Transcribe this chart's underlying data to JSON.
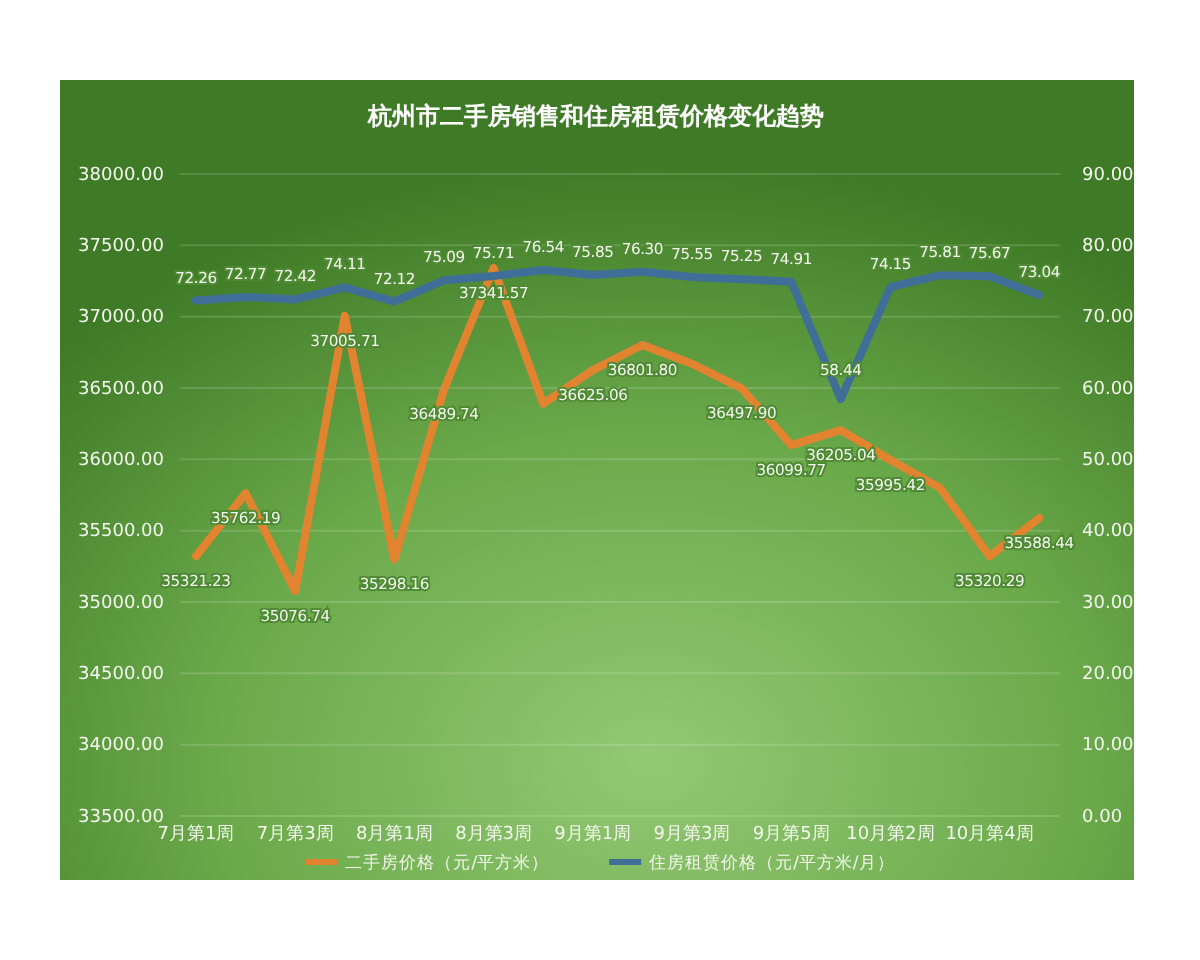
{
  "chart_data": {
    "type": "line",
    "title": "杭州市二手房销售和住房租赁价格变化趋势",
    "categories": [
      "7月第1周",
      null,
      "7月第3周",
      null,
      "8月第1周",
      null,
      "8月第3周",
      null,
      "9月第1周",
      null,
      "9月第3周",
      null,
      "9月第5周",
      null,
      "10月第2周",
      null,
      "10月第4周",
      null
    ],
    "series": [
      {
        "name": "二手房价格（元/平方米）",
        "color": "#e2842f",
        "values": [
          35321.23,
          35762.19,
          35076.74,
          37005.71,
          35298.16,
          36489.74,
          37341.57,
          36390,
          36625.06,
          36801.8,
          36670,
          36497.9,
          36099.77,
          36205.04,
          35995.42,
          35800,
          35320.29,
          35588.44
        ],
        "value_labels": [
          "35321.23",
          "35762.19",
          "35076.74",
          "37005.71",
          "35298.16",
          "36489.74",
          "37341.57",
          null,
          "36625.06",
          "36801.80",
          null,
          "36497.90",
          "36099.77",
          "36205.04",
          "35995.42",
          null,
          "35320.29",
          "35588.44"
        ]
      },
      {
        "name": "住房租赁价格（元/平方米/月）",
        "color": "#3f6e99",
        "axis": "y2",
        "values": [
          72.26,
          72.77,
          72.42,
          74.11,
          72.12,
          75.09,
          75.71,
          76.54,
          75.85,
          76.3,
          75.55,
          75.25,
          74.91,
          58.44,
          74.15,
          75.81,
          75.67,
          73.04
        ],
        "value_labels": [
          "72.26",
          "72.77",
          "72.42",
          "74.11",
          "72.12",
          "75.09",
          "75.71",
          "76.54",
          "75.85",
          "76.30",
          "75.55",
          "75.25",
          "74.91",
          "58.44",
          "74.15",
          "75.81",
          "75.67",
          "73.04"
        ]
      }
    ],
    "ylim": [
      33500,
      38000
    ],
    "yticks": [
      {
        "value": 33500,
        "label": "33500.00"
      },
      {
        "value": 34000,
        "label": "34000.00"
      },
      {
        "value": 34500,
        "label": "34500.00"
      },
      {
        "value": 35000,
        "label": "35000.00"
      },
      {
        "value": 35500,
        "label": "35500.00"
      },
      {
        "value": 36000,
        "label": "36000.00"
      },
      {
        "value": 36500,
        "label": "36500.00"
      },
      {
        "value": 37000,
        "label": "37000.00"
      },
      {
        "value": 37500,
        "label": "37500.00"
      },
      {
        "value": 38000,
        "label": "38000.00"
      }
    ],
    "y2lim": [
      0,
      90
    ],
    "y2ticks": [
      {
        "value": 0,
        "label": "0.00"
      },
      {
        "value": 10,
        "label": "10.00"
      },
      {
        "value": 20,
        "label": "20.00"
      },
      {
        "value": 30,
        "label": "30.00"
      },
      {
        "value": 40,
        "label": "40.00"
      },
      {
        "value": 50,
        "label": "50.00"
      },
      {
        "value": 60,
        "label": "60.00"
      },
      {
        "value": 70,
        "label": "70.00"
      },
      {
        "value": 80,
        "label": "80.00"
      },
      {
        "value": 90,
        "label": "90.00"
      }
    ],
    "grid": "y",
    "legend": "bottom",
    "marker": "none",
    "line_style": "solid"
  }
}
